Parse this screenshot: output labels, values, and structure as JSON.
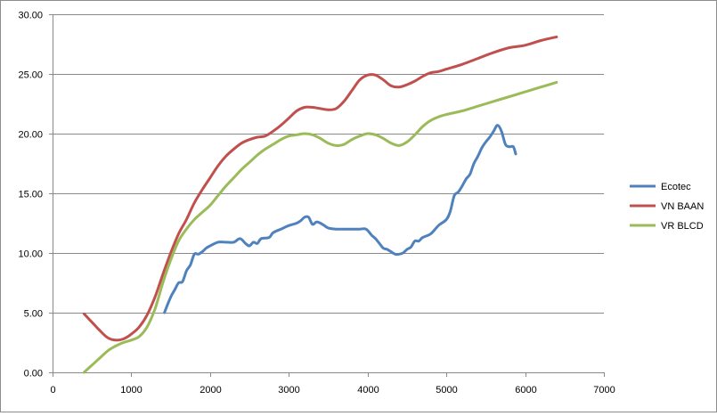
{
  "chart_data": {
    "type": "line",
    "title": "",
    "xlabel": "",
    "ylabel": "",
    "xlim": [
      0,
      7000
    ],
    "ylim": [
      0,
      30
    ],
    "x_ticks": [
      "0",
      "1000",
      "2000",
      "3000",
      "4000",
      "5000",
      "6000",
      "7000"
    ],
    "y_ticks": [
      "0.00",
      "5.00",
      "10.00",
      "15.00",
      "20.00",
      "25.00",
      "30.00"
    ],
    "grid": "horizontal",
    "legend": "right",
    "series": [
      {
        "name": "Ecotec",
        "color": "#4f81bd",
        "points": [
          [
            1420,
            5.0
          ],
          [
            1500,
            6.3
          ],
          [
            1550,
            6.9
          ],
          [
            1600,
            7.5
          ],
          [
            1650,
            7.6
          ],
          [
            1700,
            8.5
          ],
          [
            1750,
            9.0
          ],
          [
            1800,
            9.9
          ],
          [
            1850,
            9.9
          ],
          [
            1900,
            10.1
          ],
          [
            1950,
            10.4
          ],
          [
            2000,
            10.6
          ],
          [
            2100,
            10.9
          ],
          [
            2200,
            10.9
          ],
          [
            2300,
            10.9
          ],
          [
            2380,
            11.2
          ],
          [
            2450,
            10.8
          ],
          [
            2500,
            10.6
          ],
          [
            2550,
            10.9
          ],
          [
            2600,
            10.8
          ],
          [
            2650,
            11.2
          ],
          [
            2750,
            11.3
          ],
          [
            2800,
            11.7
          ],
          [
            2900,
            12.0
          ],
          [
            3000,
            12.3
          ],
          [
            3100,
            12.5
          ],
          [
            3150,
            12.7
          ],
          [
            3200,
            13.0
          ],
          [
            3250,
            13.0
          ],
          [
            3300,
            12.4
          ],
          [
            3350,
            12.6
          ],
          [
            3400,
            12.5
          ],
          [
            3450,
            12.3
          ],
          [
            3500,
            12.1
          ],
          [
            3600,
            12.0
          ],
          [
            3700,
            12.0
          ],
          [
            3800,
            12.0
          ],
          [
            3900,
            12.0
          ],
          [
            3980,
            12.0
          ],
          [
            4050,
            11.5
          ],
          [
            4100,
            11.2
          ],
          [
            4150,
            10.8
          ],
          [
            4200,
            10.4
          ],
          [
            4250,
            10.3
          ],
          [
            4300,
            10.1
          ],
          [
            4350,
            9.9
          ],
          [
            4400,
            9.9
          ],
          [
            4450,
            10.0
          ],
          [
            4500,
            10.3
          ],
          [
            4550,
            10.5
          ],
          [
            4600,
            11.0
          ],
          [
            4650,
            11.0
          ],
          [
            4700,
            11.3
          ],
          [
            4800,
            11.6
          ],
          [
            4900,
            12.3
          ],
          [
            5000,
            12.8
          ],
          [
            5050,
            13.5
          ],
          [
            5100,
            14.8
          ],
          [
            5150,
            15.1
          ],
          [
            5200,
            15.6
          ],
          [
            5250,
            16.2
          ],
          [
            5300,
            16.6
          ],
          [
            5350,
            17.5
          ],
          [
            5400,
            18.1
          ],
          [
            5450,
            18.8
          ],
          [
            5500,
            19.3
          ],
          [
            5550,
            19.7
          ],
          [
            5600,
            20.2
          ],
          [
            5650,
            20.7
          ],
          [
            5700,
            20.2
          ],
          [
            5750,
            19.1
          ],
          [
            5800,
            18.9
          ],
          [
            5850,
            18.9
          ],
          [
            5880,
            18.3
          ]
        ]
      },
      {
        "name": "VN BAAN",
        "color": "#c0504d",
        "points": [
          [
            400,
            4.9
          ],
          [
            500,
            4.2
          ],
          [
            600,
            3.5
          ],
          [
            700,
            2.9
          ],
          [
            800,
            2.7
          ],
          [
            900,
            2.8
          ],
          [
            1000,
            3.2
          ],
          [
            1100,
            3.8
          ],
          [
            1200,
            4.8
          ],
          [
            1300,
            6.3
          ],
          [
            1400,
            8.2
          ],
          [
            1500,
            10.0
          ],
          [
            1600,
            11.6
          ],
          [
            1700,
            12.8
          ],
          [
            1800,
            14.2
          ],
          [
            1900,
            15.3
          ],
          [
            2000,
            16.3
          ],
          [
            2100,
            17.3
          ],
          [
            2200,
            18.1
          ],
          [
            2300,
            18.7
          ],
          [
            2400,
            19.2
          ],
          [
            2500,
            19.5
          ],
          [
            2600,
            19.7
          ],
          [
            2700,
            19.8
          ],
          [
            2800,
            20.2
          ],
          [
            2900,
            20.7
          ],
          [
            3000,
            21.3
          ],
          [
            3100,
            21.9
          ],
          [
            3200,
            22.2
          ],
          [
            3300,
            22.2
          ],
          [
            3400,
            22.1
          ],
          [
            3500,
            22.0
          ],
          [
            3600,
            22.1
          ],
          [
            3700,
            22.7
          ],
          [
            3800,
            23.6
          ],
          [
            3900,
            24.5
          ],
          [
            4000,
            24.9
          ],
          [
            4100,
            24.9
          ],
          [
            4200,
            24.5
          ],
          [
            4300,
            24.0
          ],
          [
            4400,
            23.9
          ],
          [
            4500,
            24.1
          ],
          [
            4600,
            24.4
          ],
          [
            4700,
            24.8
          ],
          [
            4800,
            25.1
          ],
          [
            4900,
            25.2
          ],
          [
            5000,
            25.4
          ],
          [
            5200,
            25.8
          ],
          [
            5400,
            26.3
          ],
          [
            5600,
            26.8
          ],
          [
            5800,
            27.2
          ],
          [
            6000,
            27.4
          ],
          [
            6200,
            27.8
          ],
          [
            6400,
            28.1
          ]
        ]
      },
      {
        "name": "VR BLCD",
        "color": "#9bbb59",
        "points": [
          [
            400,
            0.0
          ],
          [
            500,
            0.6
          ],
          [
            600,
            1.2
          ],
          [
            700,
            1.8
          ],
          [
            800,
            2.2
          ],
          [
            900,
            2.5
          ],
          [
            1000,
            2.7
          ],
          [
            1100,
            3.0
          ],
          [
            1200,
            3.8
          ],
          [
            1300,
            5.3
          ],
          [
            1400,
            7.5
          ],
          [
            1500,
            9.4
          ],
          [
            1600,
            11.0
          ],
          [
            1700,
            12.0
          ],
          [
            1800,
            12.8
          ],
          [
            1900,
            13.4
          ],
          [
            2000,
            14.0
          ],
          [
            2100,
            14.8
          ],
          [
            2200,
            15.6
          ],
          [
            2300,
            16.3
          ],
          [
            2400,
            17.0
          ],
          [
            2500,
            17.6
          ],
          [
            2600,
            18.2
          ],
          [
            2700,
            18.7
          ],
          [
            2800,
            19.1
          ],
          [
            2900,
            19.5
          ],
          [
            3000,
            19.8
          ],
          [
            3100,
            19.9
          ],
          [
            3200,
            20.0
          ],
          [
            3300,
            19.9
          ],
          [
            3400,
            19.6
          ],
          [
            3500,
            19.2
          ],
          [
            3600,
            19.0
          ],
          [
            3700,
            19.1
          ],
          [
            3800,
            19.5
          ],
          [
            3900,
            19.8
          ],
          [
            4000,
            20.0
          ],
          [
            4100,
            19.9
          ],
          [
            4200,
            19.6
          ],
          [
            4300,
            19.2
          ],
          [
            4400,
            19.0
          ],
          [
            4500,
            19.3
          ],
          [
            4600,
            19.9
          ],
          [
            4700,
            20.6
          ],
          [
            4800,
            21.1
          ],
          [
            4900,
            21.4
          ],
          [
            5000,
            21.6
          ],
          [
            5200,
            21.9
          ],
          [
            5400,
            22.3
          ],
          [
            5600,
            22.7
          ],
          [
            5800,
            23.1
          ],
          [
            6000,
            23.5
          ],
          [
            6200,
            23.9
          ],
          [
            6400,
            24.3
          ]
        ]
      }
    ]
  }
}
